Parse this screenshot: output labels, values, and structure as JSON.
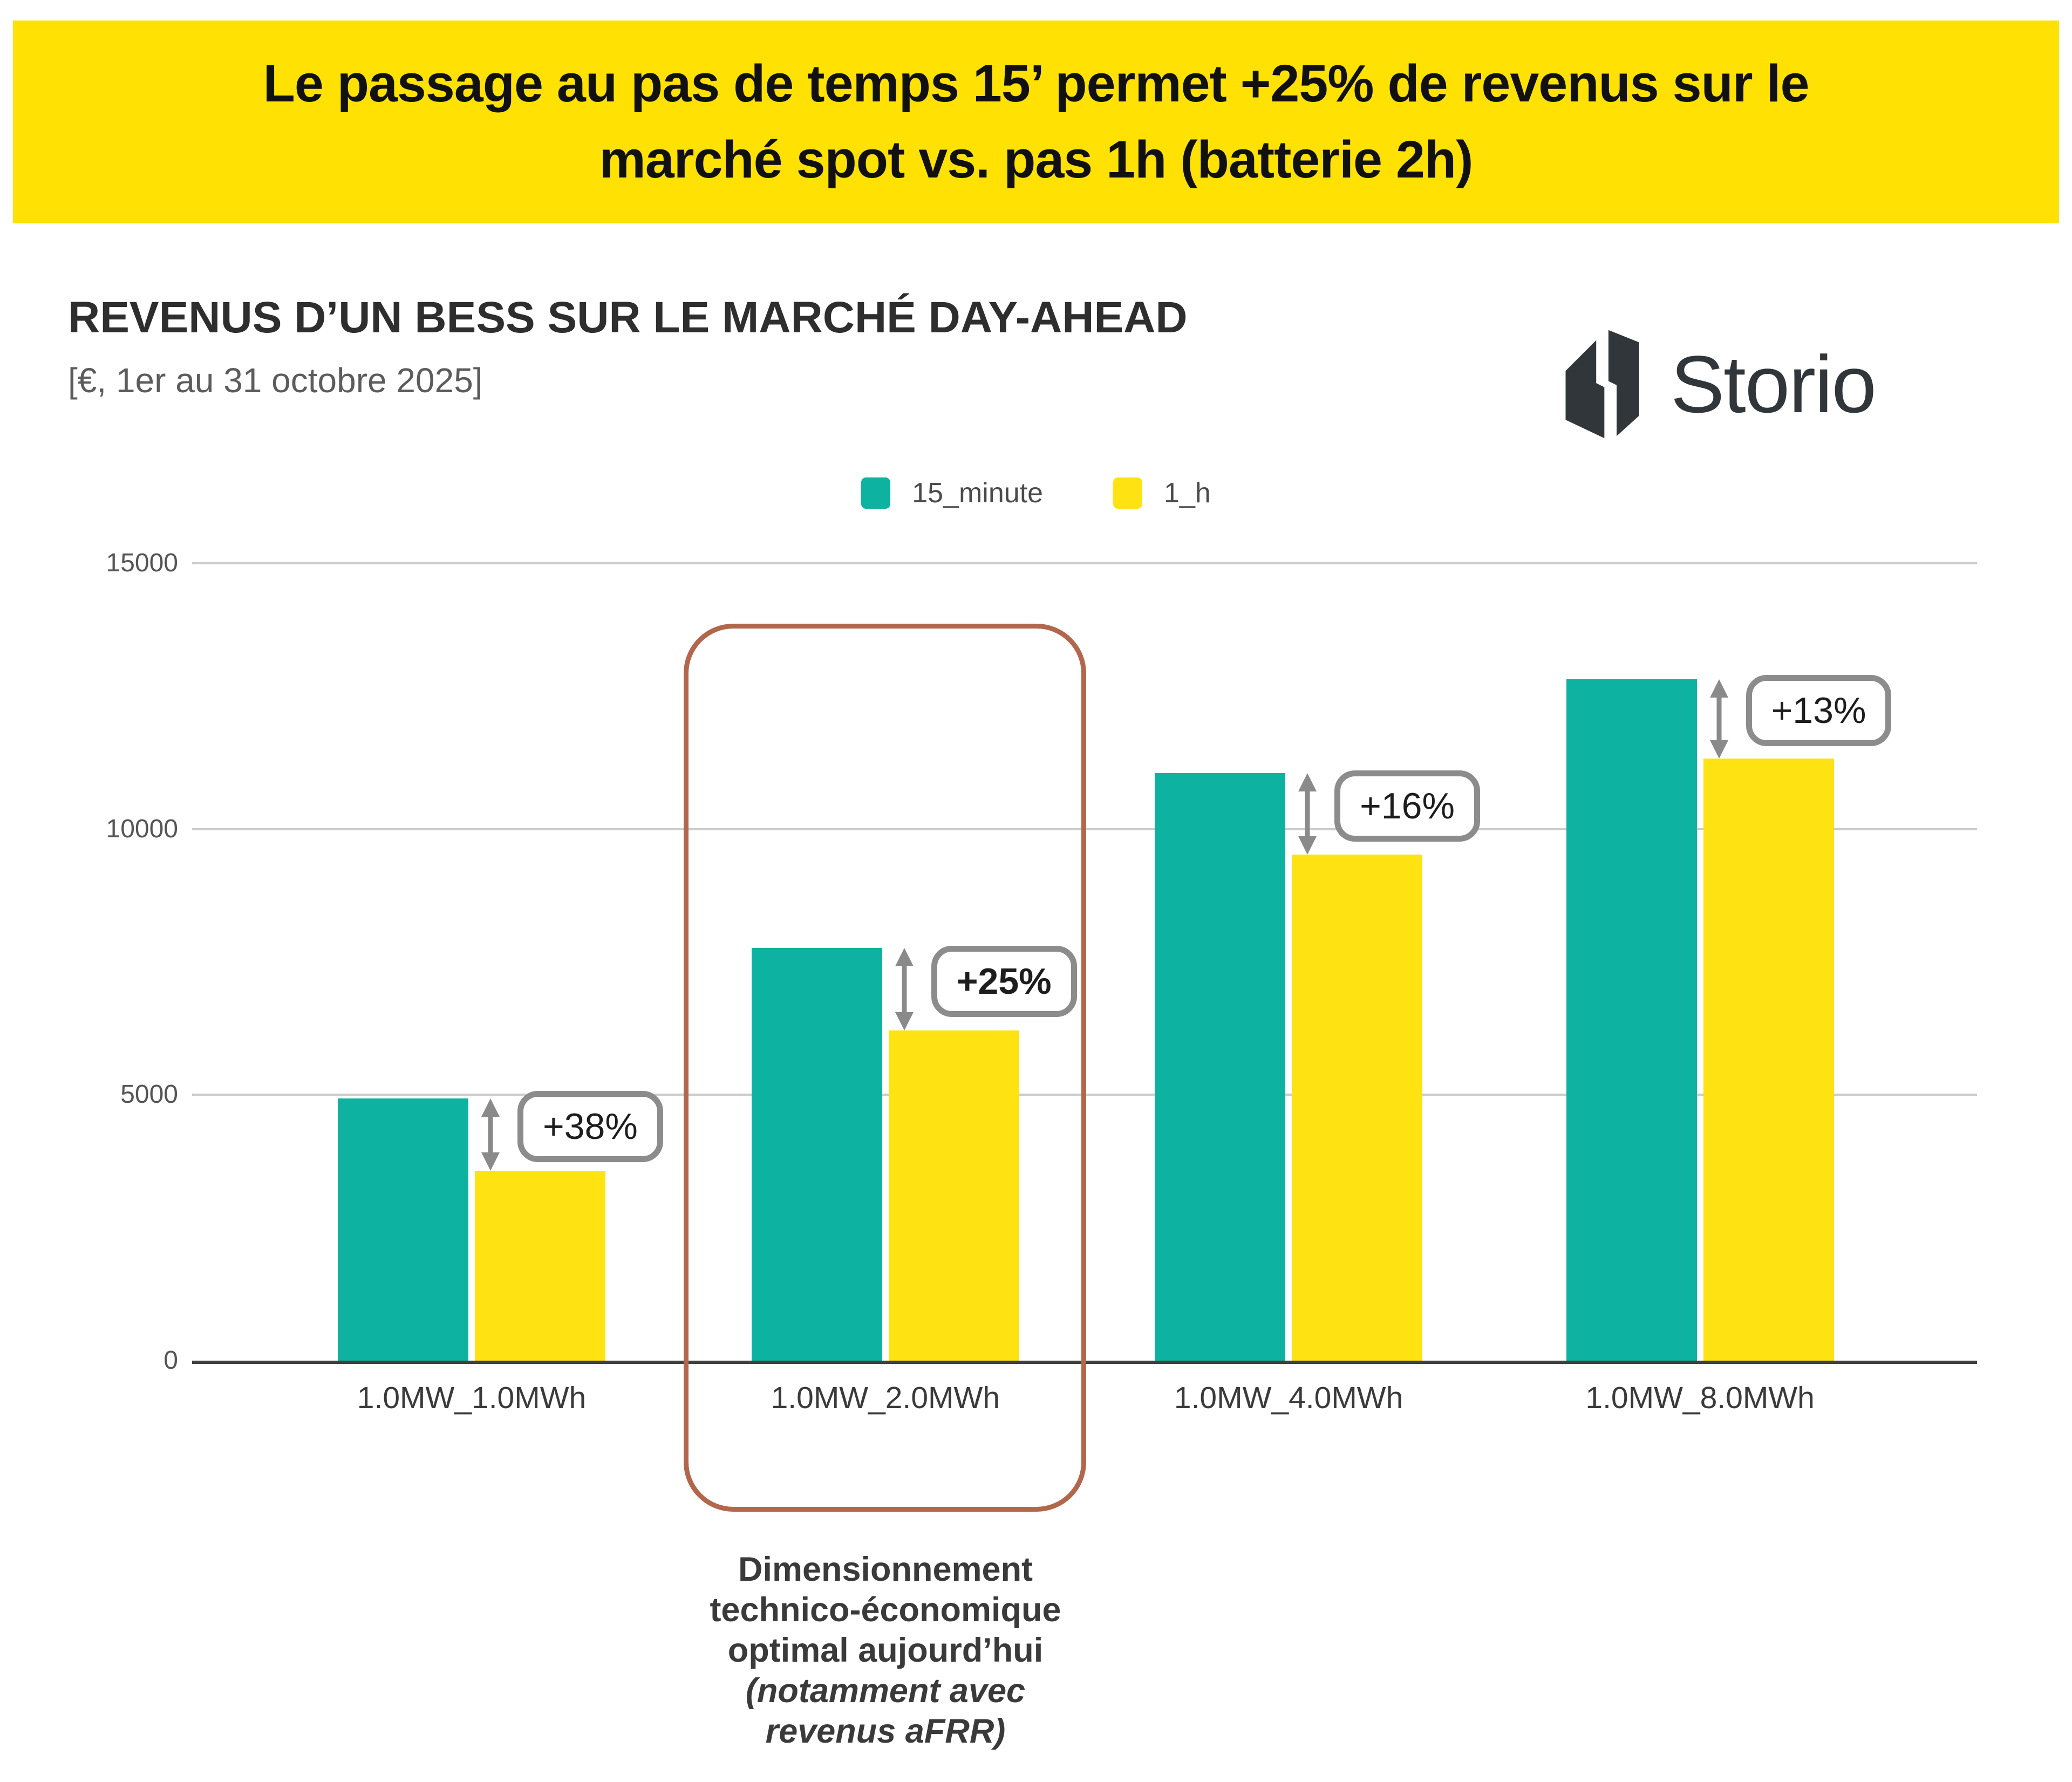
{
  "banner": {
    "line1": "Le passage au pas de temps 15’ permet +25% de revenus sur le",
    "line2": "marché spot vs. pas 1h (batterie 2h)",
    "background": "#ffe103"
  },
  "header": {
    "title": "REVENUS D’UN BESS SUR LE MARCHÉ DAY-AHEAD",
    "subtitle": "[€, 1er au 31 octobre 2025]",
    "logo_text": "Storio"
  },
  "chart_data": {
    "type": "bar",
    "title": "REVENUS D’UN BESS SUR LE MARCHÉ DAY-AHEAD",
    "subtitle": "[€, 1er au 31 octobre 2025]",
    "categories": [
      "1.0MW_1.0MWh",
      "1.0MW_2.0MWh",
      "1.0MW_4.0MWh",
      "1.0MW_8.0MWh"
    ],
    "series": [
      {
        "name": "15_minute",
        "color": "#0db3a0",
        "values": [
          4930,
          7760,
          11050,
          12820
        ]
      },
      {
        "name": "1_h",
        "color": "#ffe211",
        "values": [
          3570,
          6210,
          9520,
          11330
        ]
      }
    ],
    "deltas": [
      "+38%",
      "+25%",
      "+16%",
      "+13%"
    ],
    "highlighted_category": "1.0MW_2.0MWh",
    "xlabel": "",
    "ylabel": "",
    "ylim": [
      0,
      15000
    ],
    "yticks": [
      0,
      5000,
      10000,
      15000
    ],
    "grid": true,
    "legend_position": "top"
  },
  "highlight": {
    "box_color": "#b2674c",
    "lines_bold": [
      "Dimensionnement",
      "technico-économique",
      "optimal aujourd’hui"
    ],
    "lines_bold_italic": [
      "(notamment avec",
      "revenus aFRR)"
    ]
  },
  "colors": {
    "banner_yellow": "#ffe103",
    "teal": "#0db3a0",
    "yellow": "#ffe211",
    "axis": "#3f3f3f",
    "gridline": "#cccccc",
    "arrow_gray": "#8a8a8a",
    "delta_border": "#8c8c8c",
    "logo_dark": "#30363a"
  }
}
